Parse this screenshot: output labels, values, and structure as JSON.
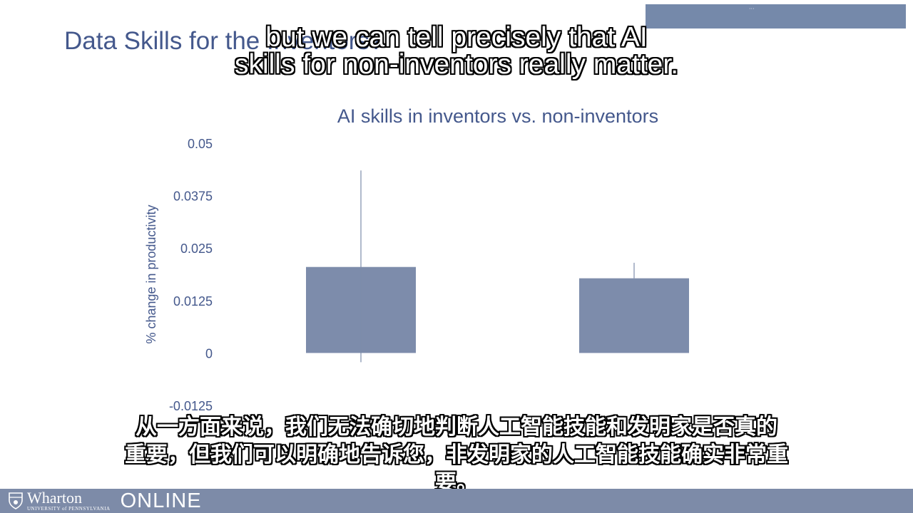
{
  "slide": {
    "title": "Data Skills for the Inventors?"
  },
  "subtitles": {
    "english": [
      "but we can tell precisely that AI",
      "skills for non-inventors really matter."
    ],
    "chinese": [
      "从一方面来说，我们无法确切地判断人工智能技能和发明家是否真的",
      "重要，但我们可以明确地告诉您，非发明家的人工智能技能确实非常重",
      "要。"
    ]
  },
  "footer": {
    "brand": "Wharton",
    "university": "UNIVERSITY of PENNSYLVANIA",
    "online": "ONLINE"
  },
  "colors": {
    "title": "#44588c",
    "bar": "#7d8cab",
    "axis_text": "#44588c",
    "banner": "#7589aa",
    "footer": "#7d8ba8"
  },
  "chart_data": {
    "type": "bar",
    "title": "AI skills in inventors vs. non-inventors",
    "xlabel": "",
    "ylabel": "% change in productivity",
    "categories": [
      "",
      ""
    ],
    "values": [
      0.0205,
      0.0178
    ],
    "error_upper": [
      0.0435,
      0.0215
    ],
    "error_lower": [
      -0.0022,
      0.0178
    ],
    "ylim": [
      -0.0125,
      0.05
    ],
    "yticks": [
      "-0.0125",
      "0",
      "0.0125",
      "0.025",
      "0.0375",
      "0.05"
    ],
    "ytick_values": [
      -0.0125,
      0,
      0.0125,
      0.025,
      0.0375,
      0.05
    ],
    "grid": false,
    "legend": "none"
  }
}
